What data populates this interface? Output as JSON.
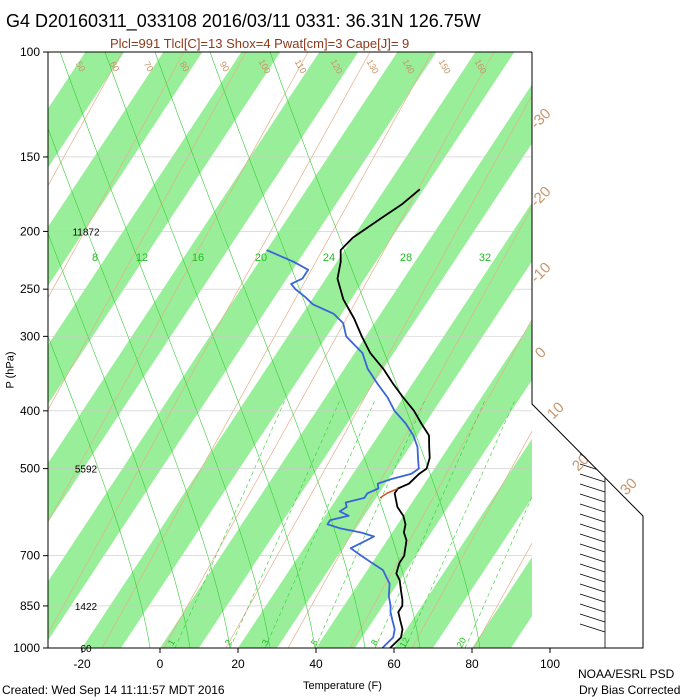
{
  "header": {
    "title": "G4 D20160311_033108 2016/03/11 0331: 36.31N 126.75W",
    "subtitle": "Plcl=991 Tlcl[C]=13 Shox=4 Pwat[cm]=3 Cape[J]= 9"
  },
  "footer": {
    "created": "Created: Wed Sep 14 11:11:57 MDT 2016",
    "credit_line1": "NOAA/ESRL PSD",
    "credit_line2": "Dry Bias Corrected"
  },
  "colors": {
    "temperature": "#000000",
    "dewpoint": "#3a64d8",
    "parcel": "#d04a1a",
    "isotherm_band": "#99ef99",
    "dry_adiabat": "#e2b08a",
    "moist_adiabat": "#33cc33",
    "mixing_ratio": "#33cc33",
    "label_brown": "#c8956a"
  },
  "chart_data": {
    "type": "skew-t log-p sounding",
    "xlabel": "Temperature (F)",
    "ylabel": "P (hPa)",
    "pressure_ticks": [
      100,
      150,
      200,
      250,
      300,
      400,
      500,
      700,
      850,
      1000
    ],
    "temperature_ticks_F": [
      -20,
      0,
      20,
      40,
      60,
      80,
      100
    ],
    "height_labels": [
      {
        "pressure": 200,
        "text": "11872"
      },
      {
        "pressure": 500,
        "text": "5592"
      },
      {
        "pressure": 850,
        "text": "1422"
      },
      {
        "pressure": 1000,
        "text": "60"
      }
    ],
    "mixing_ratio_labels_upper": [
      "8",
      "12",
      "16",
      "20",
      "24",
      "28",
      "32"
    ],
    "mixing_ratio_labels_lower": [
      "1",
      "2",
      "3",
      "5",
      "8",
      "12",
      "20"
    ],
    "theta_labels": [
      "50",
      "60",
      "70",
      "80",
      "90",
      "100",
      "110",
      "120",
      "130",
      "140",
      "150",
      "160"
    ],
    "theta_e_labels": [
      "-30",
      "-20",
      "-10",
      "0",
      "10",
      "20",
      "30"
    ],
    "series": [
      {
        "name": "Temperature",
        "points": [
          {
            "p": 1000,
            "t": 59
          },
          {
            "p": 960,
            "t": 60
          },
          {
            "p": 930,
            "t": 59
          },
          {
            "p": 900,
            "t": 57
          },
          {
            "p": 870,
            "t": 55
          },
          {
            "p": 850,
            "t": 55
          },
          {
            "p": 830,
            "t": 54
          },
          {
            "p": 800,
            "t": 52
          },
          {
            "p": 770,
            "t": 50
          },
          {
            "p": 750,
            "t": 48
          },
          {
            "p": 720,
            "t": 47
          },
          {
            "p": 700,
            "t": 47
          },
          {
            "p": 680,
            "t": 46
          },
          {
            "p": 660,
            "t": 45
          },
          {
            "p": 640,
            "t": 43
          },
          {
            "p": 620,
            "t": 42
          },
          {
            "p": 600,
            "t": 40
          },
          {
            "p": 580,
            "t": 37
          },
          {
            "p": 560,
            "t": 35
          },
          {
            "p": 550,
            "t": 34
          },
          {
            "p": 540,
            "t": 34
          },
          {
            "p": 530,
            "t": 36
          },
          {
            "p": 510,
            "t": 37
          },
          {
            "p": 500,
            "t": 38
          },
          {
            "p": 480,
            "t": 37
          },
          {
            "p": 460,
            "t": 35
          },
          {
            "p": 440,
            "t": 33
          },
          {
            "p": 420,
            "t": 29
          },
          {
            "p": 400,
            "t": 25
          },
          {
            "p": 380,
            "t": 20
          },
          {
            "p": 360,
            "t": 15
          },
          {
            "p": 340,
            "t": 10
          },
          {
            "p": 320,
            "t": 4
          },
          {
            "p": 300,
            "t": -1
          },
          {
            "p": 280,
            "t": -6
          },
          {
            "p": 260,
            "t": -12
          },
          {
            "p": 240,
            "t": -17
          },
          {
            "p": 225,
            "t": -19
          },
          {
            "p": 215,
            "t": -21
          },
          {
            "p": 205,
            "t": -20
          },
          {
            "p": 190,
            "t": -16
          },
          {
            "p": 180,
            "t": -13
          },
          {
            "p": 170,
            "t": -11
          }
        ]
      },
      {
        "name": "Dewpoint",
        "points": [
          {
            "p": 1000,
            "t": 57
          },
          {
            "p": 960,
            "t": 58
          },
          {
            "p": 930,
            "t": 57
          },
          {
            "p": 900,
            "t": 55
          },
          {
            "p": 870,
            "t": 53
          },
          {
            "p": 850,
            "t": 52
          },
          {
            "p": 820,
            "t": 50
          },
          {
            "p": 800,
            "t": 49
          },
          {
            "p": 780,
            "t": 48
          },
          {
            "p": 760,
            "t": 46
          },
          {
            "p": 740,
            "t": 44
          },
          {
            "p": 720,
            "t": 40
          },
          {
            "p": 700,
            "t": 36
          },
          {
            "p": 680,
            "t": 32
          },
          {
            "p": 665,
            "t": 34
          },
          {
            "p": 650,
            "t": 36
          },
          {
            "p": 640,
            "t": 32
          },
          {
            "p": 630,
            "t": 26
          },
          {
            "p": 620,
            "t": 22
          },
          {
            "p": 610,
            "t": 22
          },
          {
            "p": 600,
            "t": 26
          },
          {
            "p": 590,
            "t": 23
          },
          {
            "p": 580,
            "t": 24
          },
          {
            "p": 570,
            "t": 23
          },
          {
            "p": 560,
            "t": 27
          },
          {
            "p": 550,
            "t": 27
          },
          {
            "p": 540,
            "t": 29
          },
          {
            "p": 530,
            "t": 28
          },
          {
            "p": 520,
            "t": 31
          },
          {
            "p": 510,
            "t": 35
          },
          {
            "p": 500,
            "t": 36
          },
          {
            "p": 480,
            "t": 34
          },
          {
            "p": 460,
            "t": 32
          },
          {
            "p": 440,
            "t": 29
          },
          {
            "p": 420,
            "t": 25
          },
          {
            "p": 400,
            "t": 20
          },
          {
            "p": 380,
            "t": 16
          },
          {
            "p": 360,
            "t": 11
          },
          {
            "p": 340,
            "t": 6
          },
          {
            "p": 320,
            "t": 2
          },
          {
            "p": 300,
            "t": -5
          },
          {
            "p": 285,
            "t": -8
          },
          {
            "p": 275,
            "t": -12
          },
          {
            "p": 265,
            "t": -19
          },
          {
            "p": 258,
            "t": -22
          },
          {
            "p": 250,
            "t": -26
          },
          {
            "p": 245,
            "t": -28
          },
          {
            "p": 240,
            "t": -26
          },
          {
            "p": 232,
            "t": -26
          },
          {
            "p": 225,
            "t": -31
          },
          {
            "p": 215,
            "t": -40
          }
        ]
      },
      {
        "name": "Parcel",
        "points": [
          {
            "p": 560,
            "t": 31
          },
          {
            "p": 550,
            "t": 32
          },
          {
            "p": 540,
            "t": 34
          }
        ]
      }
    ],
    "wind_column": {
      "pressure_range": [
        100,
        1000
      ]
    },
    "grid": true
  }
}
